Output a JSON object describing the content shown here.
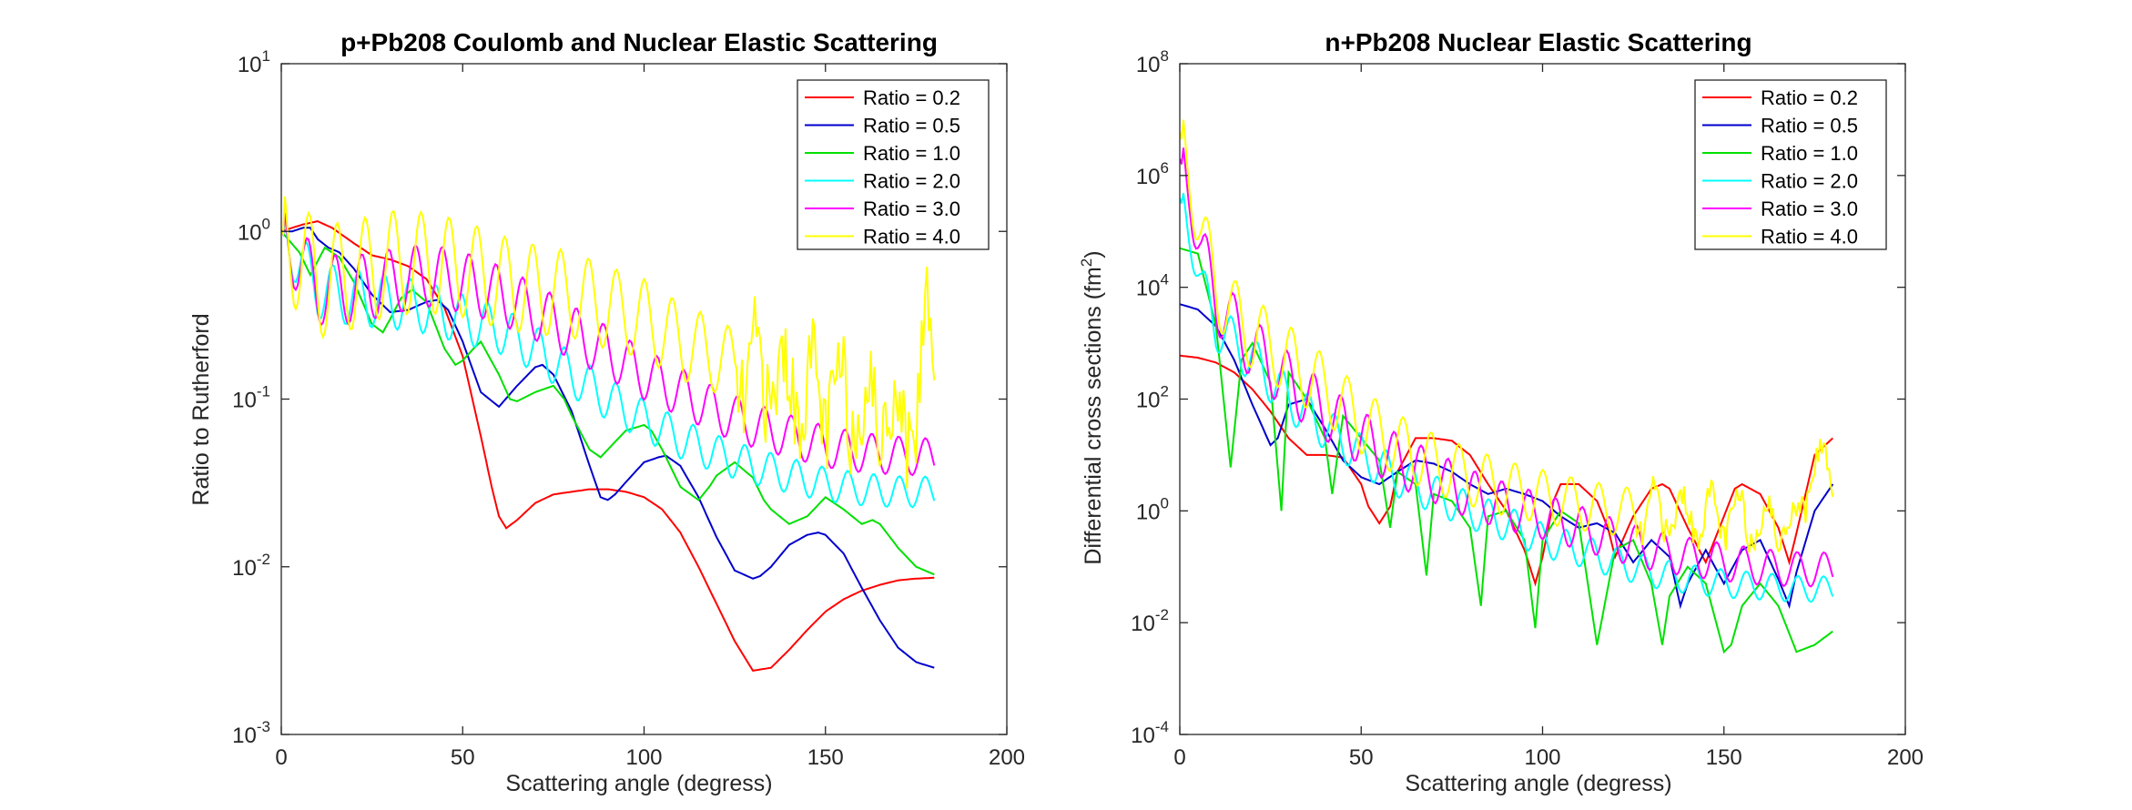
{
  "charts": [
    {
      "id": "left",
      "type": "line",
      "title": "p+Pb208 Coulomb and Nuclear Elastic Scattering",
      "xlabel": "Scattering angle (degress)",
      "ylabel": "Ratio to Rutherford",
      "yscale": "log",
      "xlim": [
        0,
        200
      ],
      "ylim": [
        0.001,
        10
      ],
      "xticks": [
        "0",
        "50",
        "100",
        "150",
        "200"
      ],
      "yticks_exp": [
        "-3",
        "-2",
        "-1",
        "0",
        "1"
      ],
      "series": [
        {
          "name": "Ratio = 0.2",
          "color": "#ff0000",
          "oscillating": false,
          "x": [
            0,
            3,
            6,
            10,
            14,
            20,
            25,
            30,
            35,
            40,
            45,
            50,
            55,
            58,
            60,
            62,
            65,
            70,
            75,
            80,
            85,
            90,
            95,
            100,
            105,
            110,
            115,
            120,
            125,
            130,
            135,
            140,
            145,
            150,
            155,
            160,
            165,
            170,
            175,
            180
          ],
          "y": [
            1.0,
            1.05,
            1.1,
            1.15,
            1.05,
            0.85,
            0.72,
            0.68,
            0.62,
            0.52,
            0.35,
            0.18,
            0.06,
            0.03,
            0.02,
            0.017,
            0.019,
            0.024,
            0.027,
            0.028,
            0.029,
            0.029,
            0.028,
            0.026,
            0.022,
            0.016,
            0.01,
            0.006,
            0.0036,
            0.0024,
            0.0025,
            0.0032,
            0.0042,
            0.0054,
            0.0064,
            0.0072,
            0.0078,
            0.0083,
            0.0085,
            0.0086
          ]
        },
        {
          "name": "Ratio = 0.5",
          "color": "#0000cc",
          "oscillating": false,
          "x": [
            0,
            3,
            6,
            8,
            10,
            13,
            16,
            20,
            25,
            30,
            35,
            40,
            43,
            46,
            50,
            55,
            60,
            65,
            70,
            72,
            75,
            80,
            85,
            88,
            90,
            92,
            95,
            100,
            104,
            106,
            110,
            115,
            120,
            125,
            130,
            132,
            135,
            140,
            145,
            148,
            150,
            155,
            160,
            165,
            170,
            175,
            180
          ],
          "y": [
            1.0,
            1.0,
            1.05,
            1.05,
            0.9,
            0.8,
            0.75,
            0.6,
            0.42,
            0.33,
            0.34,
            0.38,
            0.39,
            0.34,
            0.22,
            0.11,
            0.09,
            0.12,
            0.155,
            0.16,
            0.14,
            0.085,
            0.04,
            0.026,
            0.025,
            0.027,
            0.032,
            0.042,
            0.045,
            0.046,
            0.04,
            0.026,
            0.015,
            0.0095,
            0.0085,
            0.0088,
            0.01,
            0.0135,
            0.0155,
            0.016,
            0.0155,
            0.012,
            0.0075,
            0.0048,
            0.0033,
            0.0027,
            0.0025
          ]
        },
        {
          "name": "Ratio = 1.0",
          "color": "#00e000",
          "oscillating": false,
          "x": [
            0,
            5,
            8,
            12,
            16,
            20,
            25,
            28,
            30,
            33,
            36,
            40,
            45,
            48,
            50,
            53,
            55,
            60,
            63,
            65,
            70,
            75,
            78,
            80,
            85,
            88,
            90,
            95,
            100,
            102,
            105,
            110,
            115,
            118,
            120,
            125,
            130,
            133,
            135,
            140,
            145,
            150,
            155,
            160,
            163,
            165,
            170,
            175,
            180
          ],
          "y": [
            1.0,
            0.75,
            0.55,
            0.8,
            0.7,
            0.5,
            0.28,
            0.25,
            0.3,
            0.4,
            0.45,
            0.38,
            0.2,
            0.16,
            0.17,
            0.2,
            0.22,
            0.14,
            0.1,
            0.097,
            0.11,
            0.12,
            0.1,
            0.08,
            0.05,
            0.045,
            0.05,
            0.065,
            0.07,
            0.065,
            0.05,
            0.03,
            0.025,
            0.03,
            0.035,
            0.042,
            0.034,
            0.025,
            0.022,
            0.018,
            0.02,
            0.026,
            0.022,
            0.018,
            0.019,
            0.018,
            0.013,
            0.01,
            0.009
          ]
        },
        {
          "name": "Ratio = 2.0",
          "color": "#00ffff",
          "oscillating": true,
          "amp": 0.18,
          "x": [
            0,
            10,
            20,
            30,
            40,
            50,
            60,
            70,
            80,
            90,
            100,
            110,
            120,
            130,
            140,
            150,
            160,
            170,
            180
          ],
          "y": [
            1.0,
            0.45,
            0.4,
            0.38,
            0.35,
            0.3,
            0.26,
            0.2,
            0.14,
            0.1,
            0.075,
            0.058,
            0.047,
            0.04,
            0.035,
            0.031,
            0.029,
            0.028,
            0.028
          ]
        },
        {
          "name": "Ratio = 3.0",
          "color": "#ff00ff",
          "oscillating": true,
          "amp": 0.22,
          "x": [
            0,
            10,
            20,
            30,
            40,
            50,
            60,
            70,
            80,
            90,
            100,
            110,
            120,
            130,
            140,
            150,
            160,
            170,
            180
          ],
          "y": [
            1.0,
            0.45,
            0.45,
            0.5,
            0.55,
            0.5,
            0.42,
            0.33,
            0.25,
            0.19,
            0.14,
            0.11,
            0.085,
            0.07,
            0.06,
            0.052,
            0.048,
            0.046,
            0.045
          ]
        },
        {
          "name": "Ratio = 4.0",
          "color": "#ffff00",
          "oscillating": true,
          "amp": 0.35,
          "tail_noise": true,
          "x": [
            0,
            10,
            20,
            30,
            40,
            50,
            60,
            70,
            80,
            90,
            100,
            110,
            120,
            130,
            140,
            150,
            160,
            170,
            175,
            178,
            180
          ],
          "y": [
            1.0,
            0.5,
            0.55,
            0.65,
            0.65,
            0.6,
            0.5,
            0.45,
            0.42,
            0.35,
            0.3,
            0.22,
            0.18,
            0.14,
            0.12,
            0.1,
            0.09,
            0.08,
            0.07,
            0.33,
            0.27
          ]
        }
      ]
    },
    {
      "id": "right",
      "type": "line",
      "title": "n+Pb208 Nuclear Elastic Scattering",
      "xlabel": "Scattering angle (degress)",
      "ylabel": "Differential cross sections (fm",
      "ylabel_sup": "2",
      "ylabel_end": ")",
      "yscale": "log",
      "xlim": [
        0,
        200
      ],
      "ylim": [
        0.0001,
        100000000
      ],
      "xticks": [
        "0",
        "50",
        "100",
        "150",
        "200"
      ],
      "yticks_exp": [
        "-4",
        "-2",
        "0",
        "2",
        "4",
        "6",
        "8"
      ],
      "series": [
        {
          "name": "Ratio = 0.2",
          "color": "#ff0000",
          "oscillating": false,
          "x": [
            0,
            5,
            10,
            15,
            20,
            25,
            30,
            35,
            40,
            45,
            50,
            52,
            55,
            58,
            60,
            65,
            70,
            75,
            80,
            85,
            90,
            95,
            98,
            100,
            103,
            105,
            110,
            115,
            118,
            120,
            125,
            130,
            133,
            135,
            140,
            145,
            150,
            153,
            155,
            160,
            165,
            168,
            170,
            175,
            180
          ],
          "y": [
            600,
            550,
            450,
            300,
            150,
            60,
            20,
            10,
            10,
            9,
            3,
            1.2,
            0.6,
            1.2,
            5,
            20,
            20,
            18,
            10,
            3,
            1,
            0.2,
            0.05,
            0.15,
            1.5,
            3,
            3,
            1.5,
            0.5,
            0.15,
            0.8,
            2.5,
            3,
            2.5,
            0.5,
            0.12,
            0.8,
            2.5,
            3,
            2,
            0.5,
            0.12,
            0.4,
            10,
            20
          ]
        },
        {
          "name": "Ratio = 0.5",
          "color": "#0000cc",
          "oscillating": false,
          "x": [
            0,
            5,
            10,
            15,
            20,
            25,
            27,
            30,
            35,
            40,
            45,
            50,
            55,
            60,
            65,
            70,
            75,
            80,
            85,
            90,
            95,
            100,
            105,
            110,
            115,
            120,
            125,
            130,
            135,
            138,
            140,
            145,
            150,
            155,
            160,
            165,
            168,
            170,
            175,
            180
          ],
          "y": [
            5000,
            4000,
            2000,
            500,
            80,
            15,
            20,
            80,
            100,
            30,
            8,
            4,
            3,
            5,
            8,
            7,
            5,
            3,
            2,
            2.5,
            2,
            1.5,
            0.8,
            0.5,
            0.6,
            0.4,
            0.12,
            0.3,
            0.15,
            0.02,
            0.05,
            0.2,
            0.05,
            0.2,
            0.3,
            0.06,
            0.02,
            0.08,
            1,
            3
          ]
        },
        {
          "name": "Ratio = 1.0",
          "color": "#00e000",
          "oscillating": false,
          "x": [
            0,
            5,
            10,
            14,
            17,
            20,
            25,
            28,
            30,
            35,
            40,
            42,
            45,
            50,
            55,
            58,
            60,
            65,
            68,
            70,
            75,
            80,
            83,
            85,
            90,
            95,
            98,
            100,
            105,
            110,
            115,
            120,
            125,
            130,
            133,
            135,
            140,
            145,
            150,
            152,
            155,
            160,
            165,
            170,
            175,
            180
          ],
          "y": [
            50000,
            40000,
            2000,
            6,
            500,
            1000,
            200,
            1,
            300,
            100,
            20,
            2,
            50,
            20,
            8,
            0.5,
            5,
            3,
            0.07,
            2,
            1.5,
            0.5,
            0.02,
            0.8,
            1,
            0.3,
            0.008,
            0.3,
            1,
            0.6,
            0.004,
            0.2,
            0.3,
            0.05,
            0.004,
            0.03,
            0.1,
            0.05,
            0.003,
            0.004,
            0.02,
            0.05,
            0.02,
            0.003,
            0.004,
            0.007
          ]
        },
        {
          "name": "Ratio = 2.0",
          "color": "#00ffff",
          "oscillating": true,
          "amp": 0.45,
          "x": [
            0,
            3,
            6,
            10,
            15,
            20,
            30,
            40,
            50,
            60,
            70,
            80,
            90,
            100,
            110,
            120,
            130,
            140,
            150,
            160,
            170,
            180
          ],
          "y": [
            400000,
            100000,
            10000,
            2000,
            1000,
            500,
            100,
            30,
            10,
            4,
            2,
            1,
            0.6,
            0.3,
            0.2,
            0.12,
            0.08,
            0.06,
            0.05,
            0.045,
            0.04,
            0.04
          ]
        },
        {
          "name": "Ratio = 3.0",
          "color": "#ff00ff",
          "oscillating": true,
          "amp": 0.6,
          "x": [
            0,
            3,
            6,
            10,
            15,
            20,
            30,
            40,
            50,
            60,
            70,
            80,
            90,
            100,
            110,
            120,
            130,
            140,
            150,
            160,
            170,
            180
          ],
          "y": [
            2000000,
            500000,
            40000,
            6000,
            2000,
            800,
            200,
            60,
            20,
            8,
            4,
            2,
            1.2,
            0.8,
            0.5,
            0.3,
            0.2,
            0.15,
            0.12,
            0.1,
            0.09,
            0.09
          ]
        },
        {
          "name": "Ratio = 4.0",
          "color": "#ffff00",
          "oscillating": true,
          "amp": 0.7,
          "tail_noise": true,
          "x": [
            0,
            3,
            6,
            10,
            15,
            20,
            30,
            40,
            50,
            60,
            70,
            80,
            90,
            100,
            110,
            120,
            130,
            140,
            150,
            160,
            170,
            175,
            180
          ],
          "y": [
            6000000,
            1000000,
            80000,
            10000,
            3000,
            1500,
            500,
            150,
            40,
            15,
            7,
            4,
            2.5,
            1.8,
            1.3,
            1,
            0.9,
            0.8,
            0.8,
            0.6,
            0.6,
            8,
            5
          ]
        }
      ]
    }
  ],
  "legend_position": "top-right",
  "grid": false
}
